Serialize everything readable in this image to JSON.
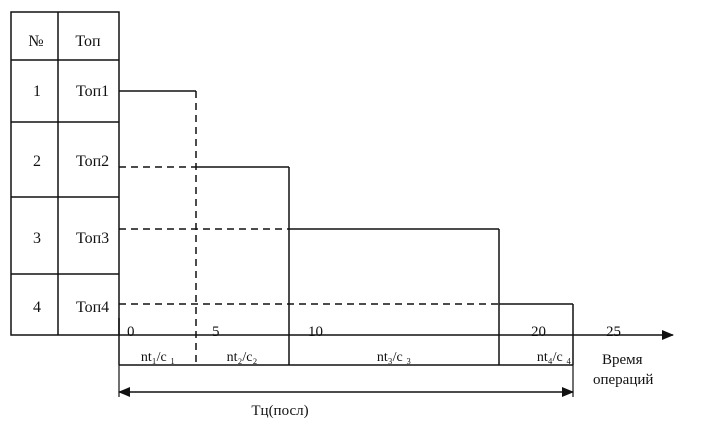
{
  "table": {
    "headers": {
      "num": "№",
      "op": "Топ"
    },
    "rows": [
      {
        "num": "1",
        "op": "Топ1"
      },
      {
        "num": "2",
        "op": "Топ2"
      },
      {
        "num": "3",
        "op": "Топ3"
      },
      {
        "num": "4",
        "op": "Топ4"
      }
    ]
  },
  "axis": {
    "ticks": [
      "0",
      "5",
      "10",
      "20",
      "25"
    ],
    "label_line1": "Время",
    "label_line2": "операций"
  },
  "segments": [
    "nt₁/c ₁",
    "nt₂/c₂",
    "nt₃/c ₃",
    "nt₄/c ₄"
  ],
  "total_label": "Тц(посл)",
  "colors": {
    "ink": "#111111",
    "background": "#ffffff"
  }
}
